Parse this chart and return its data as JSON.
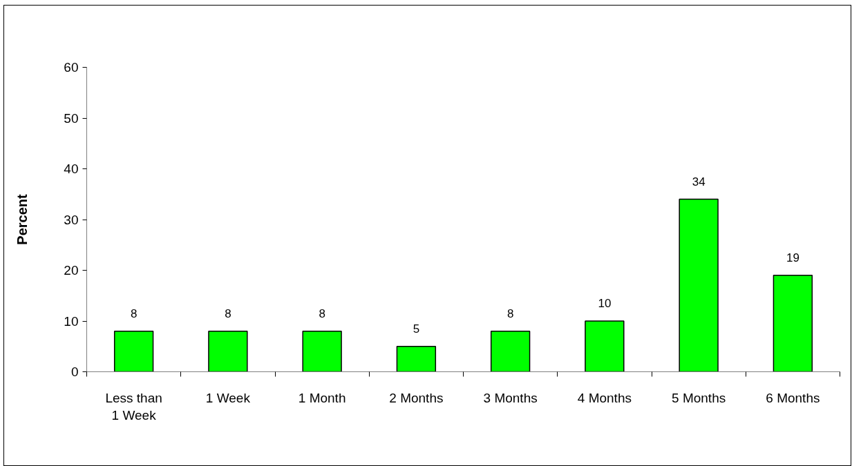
{
  "chart_data": {
    "type": "bar",
    "ylabel": "Percent",
    "categories": [
      "Less than 1 Week",
      "1 Week",
      "1 Month",
      "2 Months",
      "3 Months",
      "4 Months",
      "5 Months",
      "6 Months"
    ],
    "values": [
      8,
      8,
      8,
      5,
      8,
      10,
      34,
      19
    ],
    "color": "#00ff00",
    "ylim": [
      0,
      60
    ],
    "yticks": [
      0,
      10,
      20,
      30,
      40,
      50,
      60
    ],
    "data_labels": true
  }
}
